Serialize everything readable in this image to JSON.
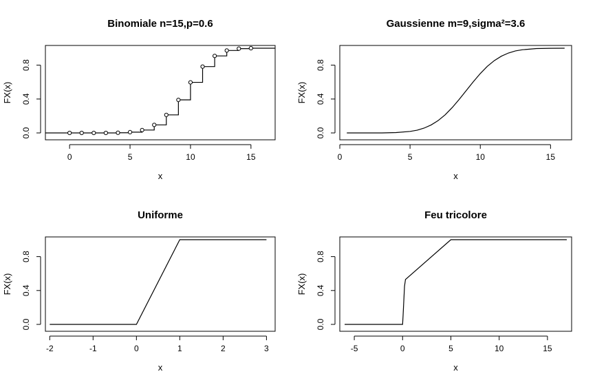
{
  "chart_data": [
    {
      "type": "line",
      "subtype": "step-cdf",
      "title": "Binomiale n=15,p=0.6",
      "xlabel": "x",
      "ylabel": "FX(x)",
      "xlim": [
        -2,
        17
      ],
      "ylim": [
        0,
        1
      ],
      "xticks": [
        0,
        5,
        10,
        15
      ],
      "yticks": [
        0.0,
        0.4,
        0.8
      ],
      "grid": false,
      "x": [
        0,
        1,
        2,
        3,
        4,
        5,
        6,
        7,
        8,
        9,
        10,
        11,
        12,
        13,
        14,
        15
      ],
      "y": [
        0.0,
        0.0,
        0.0,
        0.0,
        0.002,
        0.009,
        0.034,
        0.095,
        0.213,
        0.39,
        0.597,
        0.783,
        0.909,
        0.973,
        0.995,
        1.0
      ],
      "points": "open-circles"
    },
    {
      "type": "line",
      "subtype": "smooth-cdf",
      "title": "Gaussienne m=9,sigma²=3.6",
      "xlabel": "x",
      "ylabel": "FX(x)",
      "xlim": [
        0,
        16.5
      ],
      "ylim": [
        0,
        1
      ],
      "xticks": [
        0,
        5,
        10,
        15
      ],
      "yticks": [
        0.0,
        0.4,
        0.8
      ],
      "grid": false,
      "x": [
        0.5,
        2,
        3,
        4,
        5,
        5.5,
        6,
        6.5,
        7,
        7.5,
        8,
        8.5,
        9,
        9.5,
        10,
        10.5,
        11,
        11.5,
        12,
        12.5,
        13,
        14,
        15,
        16
      ],
      "y": [
        0.0,
        0.0,
        0.0,
        0.004,
        0.018,
        0.032,
        0.057,
        0.094,
        0.146,
        0.214,
        0.299,
        0.396,
        0.5,
        0.604,
        0.701,
        0.786,
        0.854,
        0.906,
        0.943,
        0.968,
        0.982,
        0.996,
        0.999,
        1.0
      ]
    },
    {
      "type": "line",
      "subtype": "cdf",
      "title": "Uniforme",
      "xlabel": "x",
      "ylabel": "FX(x)",
      "xlim": [
        -2.1,
        3.2
      ],
      "ylim": [
        0,
        1
      ],
      "xticks": [
        -2,
        -1,
        0,
        1,
        2,
        3
      ],
      "yticks": [
        0.0,
        0.4,
        0.8
      ],
      "grid": false,
      "x": [
        -2,
        0,
        1,
        3
      ],
      "y": [
        0,
        0,
        1,
        1
      ]
    },
    {
      "type": "line",
      "subtype": "cdf",
      "title": "Feu tricolore",
      "xlabel": "x",
      "ylabel": "FX(x)",
      "xlim": [
        -6.5,
        17.5
      ],
      "ylim": [
        0,
        1
      ],
      "xticks": [
        -5,
        0,
        5,
        10,
        15
      ],
      "yticks": [
        0.0,
        0.4,
        0.8
      ],
      "grid": false,
      "x": [
        -6,
        0,
        0.05,
        0.2,
        0.3,
        5,
        17
      ],
      "y": [
        0,
        0,
        0.1,
        0.45,
        0.53,
        1.0,
        1.0
      ]
    }
  ]
}
